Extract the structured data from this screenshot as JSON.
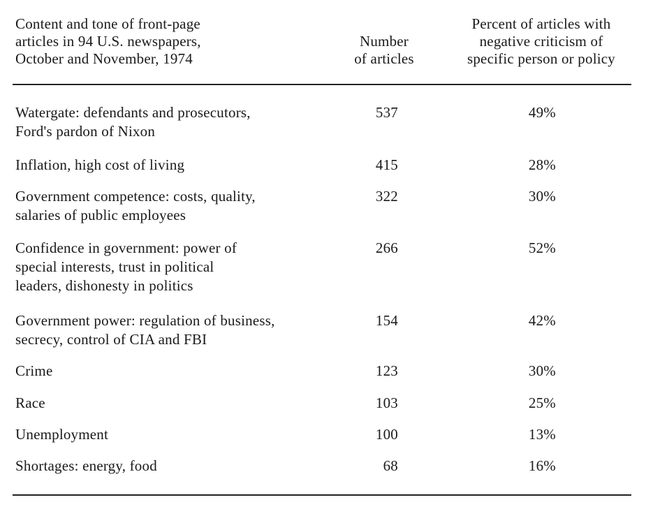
{
  "table": {
    "headers": {
      "topic": "Content and tone of front-page\narticles in 94 U.S. newspapers,\nOctober and November, 1974",
      "count": "Number\nof articles",
      "percent": "Percent of articles with\nnegative criticism of\nspecific person or policy"
    },
    "rows": [
      {
        "topic": "Watergate: defendants and prosecutors,\nFord's pardon of Nixon",
        "count": "537",
        "percent": "49%"
      },
      {
        "topic": "Inflation, high cost of living",
        "count": "415",
        "percent": "28%"
      },
      {
        "topic": "Government competence: costs, quality,\nsalaries of public employees",
        "count": "322",
        "percent": "30%"
      },
      {
        "topic": "Confidence in government: power of\nspecial interests, trust in political\nleaders, dishonesty in politics",
        "count": "266",
        "percent": "52%"
      },
      {
        "topic": "Government power: regulation of business,\nsecrecy, control of CIA and FBI",
        "count": "154",
        "percent": "42%"
      },
      {
        "topic": "Crime",
        "count": "123",
        "percent": "30%"
      },
      {
        "topic": "Race",
        "count": "103",
        "percent": "25%"
      },
      {
        "topic": "Unemployment",
        "count": "100",
        "percent": "13%"
      },
      {
        "topic": "Shortages: energy, food",
        "count": "68",
        "percent": "16%"
      }
    ]
  }
}
